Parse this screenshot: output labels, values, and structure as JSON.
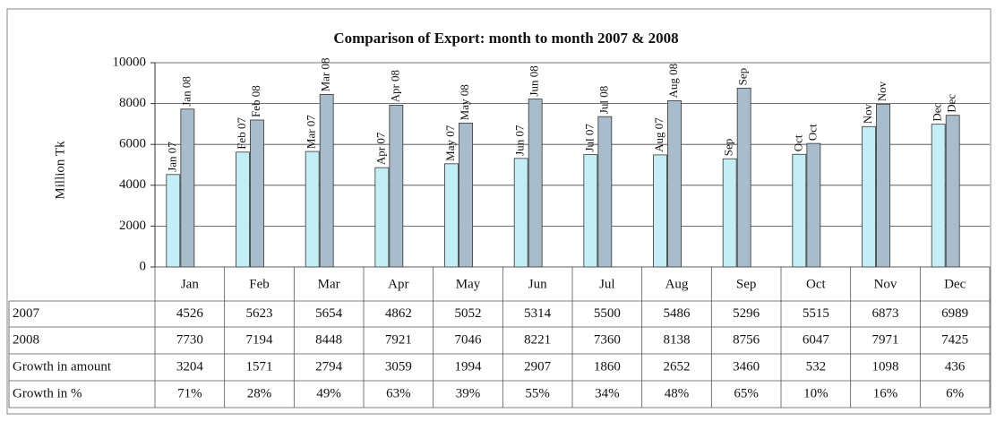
{
  "chart_data": {
    "type": "bar",
    "title": "Comparison of Export: month to month 2007 & 2008",
    "y_label": "Million Tk",
    "categories": [
      "Jan",
      "Feb",
      "Mar",
      "Apr",
      "May",
      "Jun",
      "Jul",
      "Aug",
      "Sep",
      "Oct",
      "Nov",
      "Dec"
    ],
    "series": [
      {
        "name": "2007",
        "color": "#c4eef5",
        "values": [
          4526,
          5623,
          5654,
          4862,
          5052,
          5314,
          5500,
          5486,
          5296,
          5515,
          6873,
          6989
        ],
        "data_labels": [
          "Jan 07",
          "Feb 07",
          "Mar 07",
          "Apr 07",
          "May 07",
          "Jun 07",
          "Jul 07",
          "Aug 07",
          "Sep",
          "Oct",
          "Nov",
          "Dec"
        ]
      },
      {
        "name": "2008",
        "color": "#a8bccb",
        "values": [
          7730,
          7194,
          8448,
          7921,
          7046,
          8221,
          7360,
          8138,
          8756,
          6047,
          7971,
          7425
        ],
        "data_labels": [
          "Jan 08",
          "Feb 08",
          "Mar 08",
          "Apr 08",
          "May 08",
          "Jun 08",
          "Jul 08",
          "Aug 08",
          "Sep",
          "Oct",
          "Nov",
          "Dec"
        ]
      }
    ],
    "table_rows": [
      {
        "name": "Growth in amount",
        "values": [
          3204,
          1571,
          2794,
          3059,
          1994,
          2907,
          1860,
          2652,
          3460,
          532,
          1098,
          436
        ]
      },
      {
        "name": "Growth in %",
        "values": [
          71,
          28,
          49,
          63,
          39,
          55,
          34,
          48,
          65,
          10,
          16,
          6
        ],
        "value_labels": [
          "71%",
          "28%",
          "49%",
          "63%",
          "39%",
          "55%",
          "34%",
          "48%",
          "65%",
          "10%",
          "16%",
          "6%"
        ]
      }
    ],
    "ylim": [
      0,
      10000
    ],
    "yticks": [
      0,
      2000,
      4000,
      6000,
      8000,
      10000
    ],
    "grid": true
  }
}
